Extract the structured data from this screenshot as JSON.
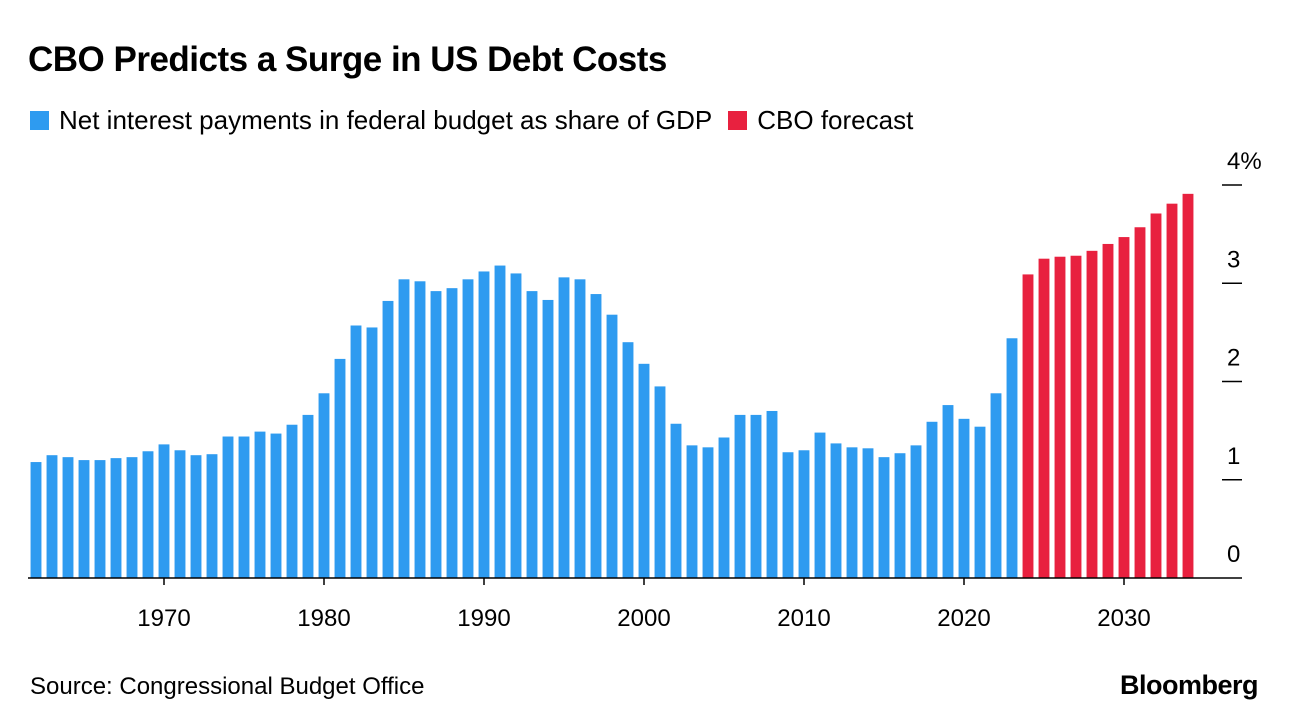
{
  "header": {
    "title": "CBO Predicts a Surge in US Debt Costs"
  },
  "legend": {
    "items": [
      {
        "label": "Net interest payments in federal budget as share of GDP",
        "color": "#2E9BF0"
      },
      {
        "label": "CBO forecast",
        "color": "#E8213F"
      }
    ]
  },
  "footer": {
    "source": "Source: Congressional Budget Office",
    "brand": "Bloomberg"
  },
  "chart_data": {
    "type": "bar",
    "title": "CBO Predicts a Surge in US Debt Costs",
    "xlabel": "",
    "ylabel": "",
    "ylim": [
      0,
      4
    ],
    "ytick_labels": [
      "0",
      "1",
      "2",
      "3",
      "4%"
    ],
    "ytick_values": [
      0,
      1,
      2,
      3,
      4
    ],
    "xtick_labels": [
      "1970",
      "1980",
      "1990",
      "2000",
      "2010",
      "2020",
      "2030"
    ],
    "xtick_values": [
      1970,
      1980,
      1990,
      2000,
      2010,
      2020,
      2030
    ],
    "x_range": [
      1961.5,
      2035.5
    ],
    "series": [
      {
        "name": "Net interest payments in federal budget as share of GDP",
        "color": "#2E9BF0",
        "x": [
          1962,
          1963,
          1964,
          1965,
          1966,
          1967,
          1968,
          1969,
          1970,
          1971,
          1972,
          1973,
          1974,
          1975,
          1976,
          1977,
          1978,
          1979,
          1980,
          1981,
          1982,
          1983,
          1984,
          1985,
          1986,
          1987,
          1988,
          1989,
          1990,
          1991,
          1992,
          1993,
          1994,
          1995,
          1996,
          1997,
          1998,
          1999,
          2000,
          2001,
          2002,
          2003,
          2004,
          2005,
          2006,
          2007,
          2008,
          2009,
          2010,
          2011,
          2012,
          2013,
          2014,
          2015,
          2016,
          2017,
          2018,
          2019,
          2020,
          2021,
          2022,
          2023
        ],
        "values": [
          1.18,
          1.25,
          1.23,
          1.2,
          1.2,
          1.22,
          1.23,
          1.29,
          1.36,
          1.3,
          1.25,
          1.26,
          1.44,
          1.44,
          1.49,
          1.47,
          1.56,
          1.66,
          1.88,
          2.23,
          2.57,
          2.55,
          2.82,
          3.04,
          3.02,
          2.92,
          2.95,
          3.04,
          3.12,
          3.18,
          3.1,
          2.92,
          2.83,
          3.06,
          3.04,
          2.89,
          2.68,
          2.4,
          2.18,
          1.95,
          1.57,
          1.35,
          1.33,
          1.43,
          1.66,
          1.66,
          1.7,
          1.28,
          1.3,
          1.48,
          1.37,
          1.33,
          1.32,
          1.23,
          1.27,
          1.35,
          1.59,
          1.76,
          1.62,
          1.54,
          1.88,
          2.44
        ]
      },
      {
        "name": "CBO forecast",
        "color": "#E8213F",
        "x": [
          2024,
          2025,
          2026,
          2027,
          2028,
          2029,
          2030,
          2031,
          2032,
          2033,
          2034
        ],
        "values": [
          3.09,
          3.25,
          3.27,
          3.28,
          3.33,
          3.4,
          3.47,
          3.57,
          3.71,
          3.81,
          3.91
        ]
      }
    ]
  }
}
